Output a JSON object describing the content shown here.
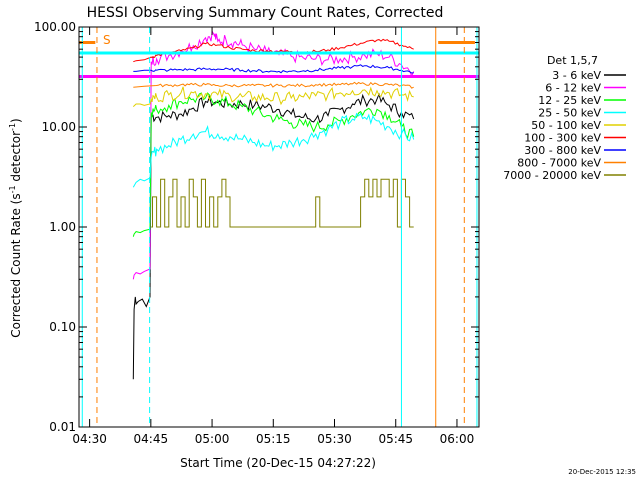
{
  "chart_data": {
    "type": "line",
    "title": "HESSI Observing Summary Count Rates, Corrected",
    "xlabel": "Start Time (20-Dec-15 04:27:22)",
    "ylabel_main": "Corrected Count Rate (s",
    "ylabel_sup1": "-1",
    "ylabel_mid": " detector",
    "ylabel_sup2": "-1",
    "ylabel_end": ")",
    "x_unit": "minutes after 04:27:22",
    "xlim": [
      0,
      98
    ],
    "ylim": [
      0.01,
      100
    ],
    "y_scale": "log",
    "x_ticks": [
      {
        "x": 2.6,
        "label": "04:30"
      },
      {
        "x": 17.6,
        "label": "04:45"
      },
      {
        "x": 32.6,
        "label": "05:00"
      },
      {
        "x": 47.6,
        "label": "05:15"
      },
      {
        "x": 62.6,
        "label": "05:30"
      },
      {
        "x": 77.6,
        "label": "05:45"
      },
      {
        "x": 92.6,
        "label": "06:00"
      }
    ],
    "y_ticks": [
      {
        "y": 100,
        "label": "100.00"
      },
      {
        "y": 10,
        "label": "10.00"
      },
      {
        "y": 1,
        "label": "1.00"
      },
      {
        "y": 0.1,
        "label": "0.10"
      },
      {
        "y": 0.01,
        "label": "0.01"
      }
    ],
    "legend_title": "Det 1,5,7",
    "legend_position": "right",
    "series": [
      {
        "name": "3 - 6 keV",
        "color": "#000000",
        "x": [
          13.3,
          13.5,
          13.8,
          14.0,
          14.5,
          15.5,
          16.5,
          17.4,
          17.7,
          19,
          22,
          25,
          28,
          31,
          34,
          37,
          40,
          43,
          46,
          49,
          52,
          55,
          58,
          61,
          64,
          67,
          70,
          73,
          76,
          79,
          82
        ],
        "y": [
          0.03,
          0.15,
          0.2,
          0.17,
          0.18,
          0.19,
          0.16,
          0.2,
          13,
          12.5,
          13,
          13.5,
          15.5,
          18,
          17.5,
          17,
          17,
          16.5,
          16,
          15,
          13.5,
          12.5,
          12,
          13,
          15,
          17,
          18.5,
          19,
          16.5,
          14,
          12
        ]
      },
      {
        "name": "6 - 12 keV",
        "color": "#ff00ff",
        "x": [
          13.3,
          13.5,
          14,
          15,
          16,
          17.4,
          17.7,
          19,
          22,
          25,
          28,
          31,
          33,
          34,
          36,
          38,
          40,
          43,
          46,
          49,
          52,
          55,
          58,
          61,
          64,
          67,
          70,
          73,
          76,
          79,
          82
        ],
        "y": [
          0.3,
          0.33,
          0.35,
          0.34,
          0.36,
          0.38,
          45,
          48,
          52,
          58,
          65,
          78,
          85,
          72,
          75,
          70,
          66,
          60,
          56,
          53,
          51,
          49,
          48,
          47,
          48,
          50,
          52,
          54,
          50,
          42,
          36
        ]
      },
      {
        "name": "12 - 25 keV",
        "color": "#00ff00",
        "x": [
          13.3,
          13.5,
          14,
          15,
          16,
          17.4,
          17.7,
          19,
          22,
          25,
          28,
          31,
          34,
          37,
          40,
          43,
          46,
          49,
          52,
          55,
          58,
          61,
          64,
          67,
          70,
          73,
          76,
          79,
          82
        ],
        "y": [
          0.8,
          0.85,
          0.9,
          0.88,
          0.92,
          0.95,
          14,
          15,
          16.5,
          18,
          19,
          19.5,
          18.5,
          17,
          16,
          14.5,
          13,
          12,
          11,
          10.5,
          10,
          10.5,
          11.5,
          13,
          14.5,
          15,
          13,
          10,
          8
        ]
      },
      {
        "name": "25 - 50 keV",
        "color": "#00ffff",
        "x": [
          13.3,
          14,
          15,
          16,
          17.4,
          17.7,
          19,
          22,
          25,
          28,
          31,
          34,
          37,
          40,
          43,
          46,
          49,
          52,
          55,
          58,
          61,
          64,
          67,
          70,
          73,
          76,
          79,
          82
        ],
        "y": [
          2.5,
          2.8,
          3,
          2.9,
          3.1,
          5,
          6,
          6.5,
          7.5,
          8.5,
          9,
          8.5,
          8,
          7.5,
          7,
          6.5,
          6.5,
          7,
          7.5,
          8.5,
          9.5,
          11,
          12,
          12.5,
          11.5,
          10,
          8.5,
          7.5
        ]
      },
      {
        "name": "50 - 100 keV",
        "color": "#e0d000",
        "x": [
          13.3,
          14,
          15,
          16,
          17.4,
          17.7,
          19,
          22,
          25,
          28,
          31,
          34,
          37,
          40,
          43,
          46,
          49,
          52,
          55,
          58,
          61,
          64,
          67,
          70,
          73,
          76,
          79,
          82
        ],
        "y": [
          16,
          17,
          17,
          16.5,
          17,
          19,
          20,
          21,
          22,
          22,
          21.5,
          21,
          20.5,
          20,
          20,
          19.5,
          19.5,
          19.5,
          20,
          20.5,
          21,
          22,
          23,
          23.5,
          23,
          22,
          21,
          20
        ]
      },
      {
        "name": "100 - 300 keV",
        "color": "#ff0000",
        "x": [
          13.3,
          14,
          16,
          17.7,
          19,
          22,
          25,
          28,
          31,
          34,
          37,
          40,
          43,
          46,
          49,
          52,
          55,
          58,
          61,
          64,
          67,
          70,
          73,
          76,
          79,
          82
        ],
        "y": [
          45,
          46,
          47,
          50,
          52,
          55,
          58,
          62,
          68,
          66,
          62,
          60,
          58,
          58,
          57,
          57,
          56,
          57,
          59,
          62,
          66,
          70,
          74,
          72,
          66,
          60
        ]
      },
      {
        "name": "300 - 800 keV",
        "color": "#0000ff",
        "x": [
          13.3,
          14,
          16,
          17.7,
          19,
          22,
          25,
          28,
          31,
          34,
          37,
          40,
          43,
          46,
          49,
          52,
          55,
          58,
          61,
          64,
          67,
          70,
          73,
          76,
          79,
          82
        ],
        "y": [
          36,
          36,
          37,
          37,
          37,
          37,
          37.5,
          37.5,
          38,
          38,
          37.5,
          37,
          36.5,
          36,
          36,
          36,
          36.5,
          37,
          38,
          39,
          40,
          41,
          40,
          39,
          37,
          35
        ]
      },
      {
        "name": "800 - 7000 keV",
        "color": "#ff8000",
        "x": [
          13.3,
          16,
          19,
          22,
          25,
          28,
          31,
          34,
          37,
          40,
          43,
          46,
          49,
          52,
          55,
          58,
          61,
          64,
          67,
          70,
          73,
          76,
          79,
          82
        ],
        "y": [
          25,
          25.5,
          26,
          26,
          26.5,
          26.5,
          26.5,
          26,
          26,
          26,
          26,
          26,
          26,
          26,
          26,
          26.5,
          26.5,
          26.5,
          27,
          27,
          27,
          26.5,
          26,
          25
        ]
      },
      {
        "name": "7000 - 20000 keV",
        "color": "#808000",
        "x": [
          17.7,
          18,
          19,
          20,
          21,
          22,
          23,
          24,
          25,
          26,
          27,
          28,
          29,
          30,
          31,
          32,
          33,
          34,
          35,
          36,
          37,
          38,
          39,
          40,
          41,
          42,
          43,
          44,
          45,
          46,
          47,
          48,
          49,
          50,
          51,
          52,
          53,
          54,
          55,
          56,
          57,
          58,
          59,
          60,
          61,
          62,
          63,
          64,
          65,
          66,
          67,
          68,
          69,
          70,
          71,
          72,
          73,
          74,
          75,
          76,
          77,
          78,
          79,
          80,
          81,
          82
        ],
        "y": [
          1,
          2,
          1,
          3,
          1,
          2,
          3,
          1,
          2,
          1,
          3,
          2,
          1,
          3,
          1,
          2,
          1,
          2,
          3,
          2,
          1,
          1,
          1,
          1,
          1,
          1,
          1,
          1,
          1,
          1,
          1,
          1,
          1,
          1,
          1,
          1,
          1,
          1,
          1,
          1,
          1,
          2,
          1,
          1,
          1,
          1,
          1,
          1,
          1,
          1,
          1,
          1,
          2,
          3,
          2,
          3,
          2,
          3,
          3,
          2,
          3,
          1,
          3,
          2,
          1,
          1
        ]
      }
    ],
    "overlay_lines": [
      {
        "color": "#00ffff",
        "y": 55,
        "x": [
          0,
          98
        ]
      },
      {
        "color": "#ff00ff",
        "y": 32,
        "x": [
          0,
          98
        ]
      },
      {
        "color": "#ff8000",
        "y": 70,
        "x": [
          0,
          4
        ]
      },
      {
        "color": "#ff8000",
        "y": 70,
        "x": [
          88,
          97
        ]
      }
    ],
    "vertical_markers": [
      {
        "x": 0.8,
        "color": "#00ffff",
        "style": "solid"
      },
      {
        "x": 4.4,
        "color": "#ff8000",
        "style": "dashed"
      },
      {
        "x": 17.3,
        "color": "#00ffff",
        "style": "dashed"
      },
      {
        "x": 79.0,
        "color": "#00ffff",
        "style": "solid"
      },
      {
        "x": 87.4,
        "color": "#ff8000",
        "style": "solid"
      },
      {
        "x": 94.4,
        "color": "#ff8000",
        "style": "dashed"
      },
      {
        "x": 97.5,
        "color": "#00ffff",
        "style": "solid"
      }
    ],
    "annotation_s": "S",
    "timestamp": "20-Dec-2015 12:35"
  }
}
